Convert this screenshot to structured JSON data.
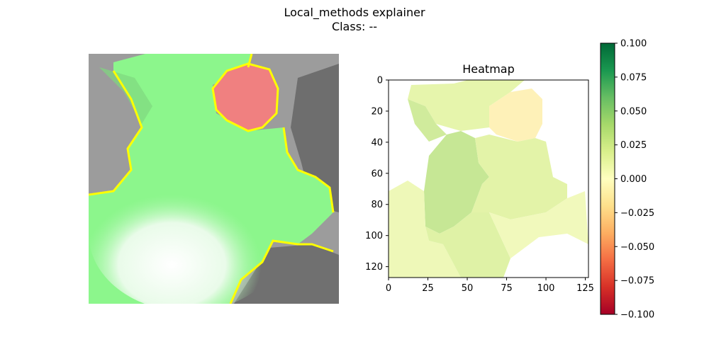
{
  "figure": {
    "title": "Local_methods explainer",
    "subtitle": "Class: --"
  },
  "chart_data": [
    {
      "type": "image",
      "description_panel": "explanation-overlay",
      "overlay_colors": {
        "positive": "#8cf88c",
        "negative": "#f07a7a",
        "boundary": "#ffff00",
        "background": "#9a9a9a"
      }
    },
    {
      "type": "heatmap",
      "title": "Heatmap",
      "xlabel": "",
      "ylabel": "",
      "x_ticks": [
        "0",
        "25",
        "50",
        "75",
        "100",
        "125"
      ],
      "y_ticks": [
        "0",
        "20",
        "40",
        "60",
        "80",
        "100",
        "120"
      ],
      "xlim": [
        0,
        127
      ],
      "ylim": [
        127,
        0
      ],
      "colormap": "RdYlGn",
      "vmin": -0.1,
      "vmax": 0.1,
      "colorbar_ticks": [
        "0.100",
        "0.075",
        "0.050",
        "0.025",
        "0.000",
        "−0.025",
        "−0.050",
        "−0.075",
        "−0.100"
      ],
      "regions": [
        {
          "name": "upper-left-region",
          "value": 0.018
        },
        {
          "name": "left-ear-region",
          "value": 0.03
        },
        {
          "name": "center-region",
          "value": 0.035
        },
        {
          "name": "right-ear-region",
          "value": -0.012
        },
        {
          "name": "right-region",
          "value": 0.02
        },
        {
          "name": "lower-left-region",
          "value": 0.012
        },
        {
          "name": "lower-center-region",
          "value": 0.022
        },
        {
          "name": "lower-right-region",
          "value": 0.01
        }
      ]
    }
  ]
}
